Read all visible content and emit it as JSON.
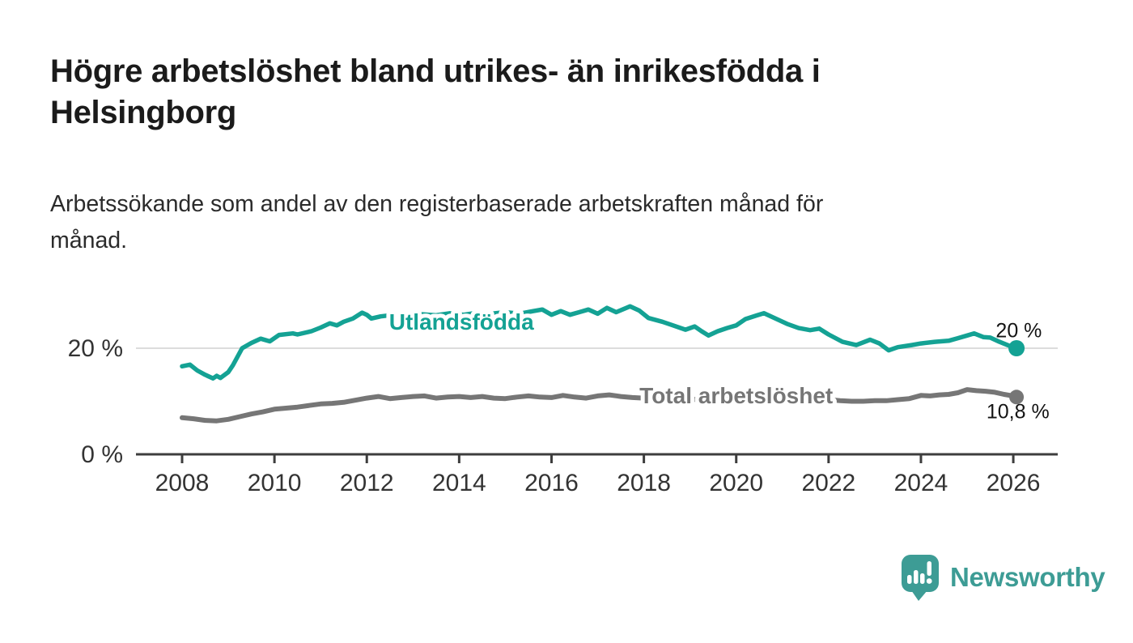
{
  "header": {
    "title": "Högre arbetslöshet bland utrikes- än inrikesfödda i\nHelsingborg",
    "subtitle": "Arbetssökande som andel av den registerbaserade arbetskraften månad för\nmånad."
  },
  "branding": {
    "name": "Newsworthy",
    "logo_icon": "speech-bubble-with-bar-chart-and-exclamation",
    "color": "#3d9c95"
  },
  "colors": {
    "background": "#ffffff",
    "title_text": "#1b1b1b",
    "body_text": "#2b2b2b",
    "axis": "#3d3d3d",
    "tick_text": "#333333",
    "gridline": "#dcdcdc",
    "accent_teal": "#14a294",
    "series_gray": "#767676",
    "end_label_text": "#141414"
  },
  "chart_data": {
    "type": "line",
    "title": "Högre arbetslöshet bland utrikes- än inrikesfödda i Helsingborg",
    "subtitle": "Arbetssökande som andel av den registerbaserade arbetskraften månad för månad.",
    "xlabel": "",
    "ylabel": "",
    "unit": "%",
    "x_range": [
      2007.9,
      2026.9
    ],
    "ylim": [
      0,
      30
    ],
    "grid": "horizontal gridline at 20 % only",
    "legend_position": "inline labels on lines, end-value labels at right",
    "x_ticks": [
      2008,
      2010,
      2012,
      2014,
      2016,
      2018,
      2020,
      2022,
      2024,
      2026
    ],
    "y_ticks": [
      {
        "value": 0,
        "label": "0 %",
        "grid": false
      },
      {
        "value": 20,
        "label": "20 %",
        "grid": true
      }
    ],
    "series": [
      {
        "id": "utlandsfodda",
        "name": "Utlandsfödda",
        "color": "#14a294",
        "line_width": 5.5,
        "end_dot_radius": 10,
        "inline_label_at": [
          2014.05,
          25.0
        ],
        "end_label": "20 %",
        "end_label_at": [
          2026.12,
          23.3
        ],
        "points": [
          [
            2008.0,
            16.6
          ],
          [
            2008.17,
            16.9
          ],
          [
            2008.33,
            15.8
          ],
          [
            2008.5,
            15.0
          ],
          [
            2008.67,
            14.3
          ],
          [
            2008.75,
            14.8
          ],
          [
            2008.83,
            14.4
          ],
          [
            2009.0,
            15.5
          ],
          [
            2009.1,
            16.8
          ],
          [
            2009.3,
            20.0
          ],
          [
            2009.5,
            21.0
          ],
          [
            2009.7,
            21.8
          ],
          [
            2009.9,
            21.3
          ],
          [
            2010.1,
            22.5
          ],
          [
            2010.4,
            22.8
          ],
          [
            2010.5,
            22.6
          ],
          [
            2010.8,
            23.2
          ],
          [
            2011.0,
            23.9
          ],
          [
            2011.2,
            24.7
          ],
          [
            2011.35,
            24.3
          ],
          [
            2011.5,
            25.0
          ],
          [
            2011.7,
            25.6
          ],
          [
            2011.9,
            26.7
          ],
          [
            2012.0,
            26.3
          ],
          [
            2012.1,
            25.6
          ],
          [
            2012.3,
            26.0
          ],
          [
            2012.6,
            26.3
          ],
          [
            2012.9,
            26.0
          ],
          [
            2013.2,
            26.4
          ],
          [
            2013.5,
            26.2
          ],
          [
            2013.8,
            26.6
          ],
          [
            2014.1,
            26.3
          ],
          [
            2014.4,
            26.7
          ],
          [
            2014.7,
            26.5
          ],
          [
            2015.0,
            26.8
          ],
          [
            2015.3,
            26.5
          ],
          [
            2015.6,
            27.0
          ],
          [
            2015.8,
            27.3
          ],
          [
            2016.0,
            26.3
          ],
          [
            2016.2,
            27.0
          ],
          [
            2016.4,
            26.3
          ],
          [
            2016.6,
            26.8
          ],
          [
            2016.8,
            27.3
          ],
          [
            2017.0,
            26.5
          ],
          [
            2017.2,
            27.6
          ],
          [
            2017.4,
            26.8
          ],
          [
            2017.7,
            27.9
          ],
          [
            2017.9,
            27.1
          ],
          [
            2018.1,
            25.7
          ],
          [
            2018.4,
            25.0
          ],
          [
            2018.6,
            24.4
          ],
          [
            2018.9,
            23.5
          ],
          [
            2019.1,
            24.1
          ],
          [
            2019.25,
            23.2
          ],
          [
            2019.4,
            22.4
          ],
          [
            2019.6,
            23.2
          ],
          [
            2019.8,
            23.8
          ],
          [
            2020.0,
            24.3
          ],
          [
            2020.2,
            25.5
          ],
          [
            2020.45,
            26.2
          ],
          [
            2020.6,
            26.6
          ],
          [
            2020.9,
            25.4
          ],
          [
            2021.1,
            24.6
          ],
          [
            2021.35,
            23.8
          ],
          [
            2021.6,
            23.4
          ],
          [
            2021.8,
            23.7
          ],
          [
            2022.0,
            22.6
          ],
          [
            2022.3,
            21.2
          ],
          [
            2022.6,
            20.6
          ],
          [
            2022.9,
            21.6
          ],
          [
            2023.1,
            20.9
          ],
          [
            2023.3,
            19.6
          ],
          [
            2023.5,
            20.2
          ],
          [
            2023.8,
            20.6
          ],
          [
            2024.0,
            20.9
          ],
          [
            2024.3,
            21.2
          ],
          [
            2024.6,
            21.4
          ],
          [
            2024.8,
            21.9
          ],
          [
            2025.0,
            22.4
          ],
          [
            2025.15,
            22.8
          ],
          [
            2025.35,
            22.1
          ],
          [
            2025.5,
            22.0
          ],
          [
            2025.7,
            21.2
          ],
          [
            2025.9,
            20.5
          ],
          [
            2026.07,
            20.0
          ]
        ]
      },
      {
        "id": "total-arbetsloshet",
        "name": "Total arbetslöshet",
        "color": "#767676",
        "line_width": 6,
        "end_dot_radius": 9,
        "inline_label_at": [
          2020.0,
          11.1
        ],
        "end_label": "10,8 %",
        "end_label_at": [
          2026.1,
          8.0
        ],
        "points": [
          [
            2008.0,
            6.9
          ],
          [
            2008.25,
            6.7
          ],
          [
            2008.5,
            6.4
          ],
          [
            2008.75,
            6.3
          ],
          [
            2009.0,
            6.6
          ],
          [
            2009.25,
            7.1
          ],
          [
            2009.5,
            7.6
          ],
          [
            2009.75,
            8.0
          ],
          [
            2010.0,
            8.5
          ],
          [
            2010.25,
            8.7
          ],
          [
            2010.5,
            8.9
          ],
          [
            2010.75,
            9.2
          ],
          [
            2011.0,
            9.5
          ],
          [
            2011.25,
            9.6
          ],
          [
            2011.5,
            9.8
          ],
          [
            2011.75,
            10.2
          ],
          [
            2012.0,
            10.6
          ],
          [
            2012.25,
            10.9
          ],
          [
            2012.5,
            10.5
          ],
          [
            2012.75,
            10.7
          ],
          [
            2013.0,
            10.9
          ],
          [
            2013.25,
            11.0
          ],
          [
            2013.5,
            10.6
          ],
          [
            2013.75,
            10.8
          ],
          [
            2014.0,
            10.9
          ],
          [
            2014.25,
            10.7
          ],
          [
            2014.5,
            10.9
          ],
          [
            2014.75,
            10.6
          ],
          [
            2015.0,
            10.5
          ],
          [
            2015.25,
            10.8
          ],
          [
            2015.5,
            11.0
          ],
          [
            2015.75,
            10.8
          ],
          [
            2016.0,
            10.7
          ],
          [
            2016.25,
            11.1
          ],
          [
            2016.5,
            10.8
          ],
          [
            2016.75,
            10.6
          ],
          [
            2017.0,
            11.0
          ],
          [
            2017.25,
            11.2
          ],
          [
            2017.5,
            10.9
          ],
          [
            2017.75,
            10.7
          ],
          [
            2018.0,
            10.6
          ],
          [
            2018.25,
            10.5
          ],
          [
            2018.5,
            10.4
          ],
          [
            2018.75,
            10.3
          ],
          [
            2019.0,
            10.3
          ],
          [
            2019.25,
            10.4
          ],
          [
            2019.5,
            10.5
          ],
          [
            2019.75,
            10.7
          ],
          [
            2020.0,
            11.0
          ],
          [
            2020.25,
            11.4
          ],
          [
            2020.5,
            11.6
          ],
          [
            2020.75,
            11.4
          ],
          [
            2021.0,
            11.2
          ],
          [
            2021.25,
            10.9
          ],
          [
            2021.5,
            10.7
          ],
          [
            2021.75,
            10.5
          ],
          [
            2022.0,
            10.3
          ],
          [
            2022.25,
            10.1
          ],
          [
            2022.5,
            10.0
          ],
          [
            2022.75,
            10.0
          ],
          [
            2023.0,
            10.1
          ],
          [
            2023.25,
            10.1
          ],
          [
            2023.5,
            10.3
          ],
          [
            2023.75,
            10.5
          ],
          [
            2024.0,
            11.1
          ],
          [
            2024.2,
            11.0
          ],
          [
            2024.4,
            11.2
          ],
          [
            2024.6,
            11.3
          ],
          [
            2024.8,
            11.6
          ],
          [
            2025.0,
            12.2
          ],
          [
            2025.2,
            12.0
          ],
          [
            2025.4,
            11.9
          ],
          [
            2025.6,
            11.7
          ],
          [
            2025.8,
            11.3
          ],
          [
            2026.0,
            11.0
          ],
          [
            2026.07,
            10.8
          ]
        ]
      }
    ]
  }
}
